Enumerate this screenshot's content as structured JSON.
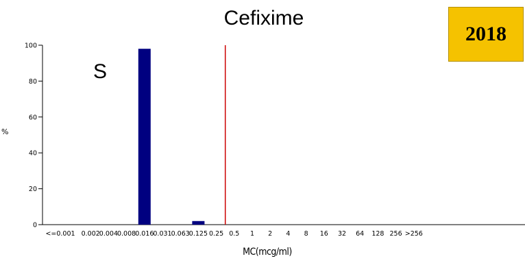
{
  "chart_data": {
    "type": "bar",
    "title": "Cefixime",
    "xlabel": "MC(mcg/ml)",
    "ylabel": "%",
    "ylim": [
      0,
      100
    ],
    "yticks": [
      0,
      20,
      40,
      60,
      80,
      100
    ],
    "categories": [
      "<=0.001",
      "0.002",
      "0.004",
      "0.008",
      "0.016",
      "0.031",
      "0.063",
      "0.125",
      "0.25",
      "0.5",
      "1",
      "2",
      "4",
      "8",
      "16",
      "32",
      "64",
      "128",
      "256",
      ">256"
    ],
    "values": [
      0,
      0,
      0,
      0,
      98,
      0,
      0,
      2,
      0,
      0,
      0,
      0,
      0,
      0,
      0,
      0,
      0,
      0,
      0,
      0
    ],
    "bar_color": "#000080",
    "breakpoint": {
      "position_after_category": "0.25",
      "color": "#cc0000"
    },
    "annotation": "S",
    "badge": {
      "text": "2018",
      "color": "#f5c200"
    },
    "grid": false
  }
}
